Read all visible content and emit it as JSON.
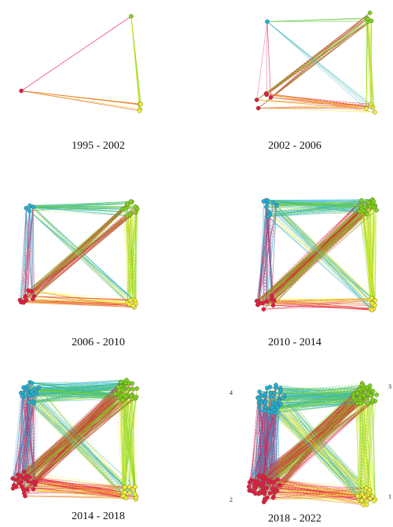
{
  "colors": {
    "cluster_1": "#f2ee3a",
    "cluster_2": "#e8174a",
    "cluster_3": "#7ed321",
    "cluster_4": "#1eaee0",
    "node_stroke": "#5a5a20"
  },
  "panels": [
    {
      "label": "1995 - 2002",
      "clusters": {
        "1": 5,
        "2": 1,
        "3": 1,
        "4": 0
      },
      "edge_density": 0.05,
      "corner_labels": null
    },
    {
      "label": "2002 - 2006",
      "clusters": {
        "1": 6,
        "2": 5,
        "3": 5,
        "4": 1
      },
      "edge_density": 0.15,
      "corner_labels": null
    },
    {
      "label": "2006 - 2010",
      "clusters": {
        "1": 8,
        "2": 10,
        "3": 14,
        "4": 5
      },
      "edge_density": 0.35,
      "corner_labels": null
    },
    {
      "label": "2010 - 2014",
      "clusters": {
        "1": 10,
        "2": 14,
        "3": 24,
        "4": 12
      },
      "edge_density": 0.55,
      "corner_labels": null
    },
    {
      "label": "2014 - 2018",
      "clusters": {
        "1": 18,
        "2": 30,
        "3": 38,
        "4": 26
      },
      "edge_density": 0.8,
      "corner_labels": null
    },
    {
      "label": "2018 - 2022",
      "clusters": {
        "1": 24,
        "2": 55,
        "3": 45,
        "4": 45
      },
      "edge_density": 1.0,
      "corner_labels": {
        "1": "1",
        "2": "2",
        "3": "3",
        "4": "4"
      }
    }
  ]
}
